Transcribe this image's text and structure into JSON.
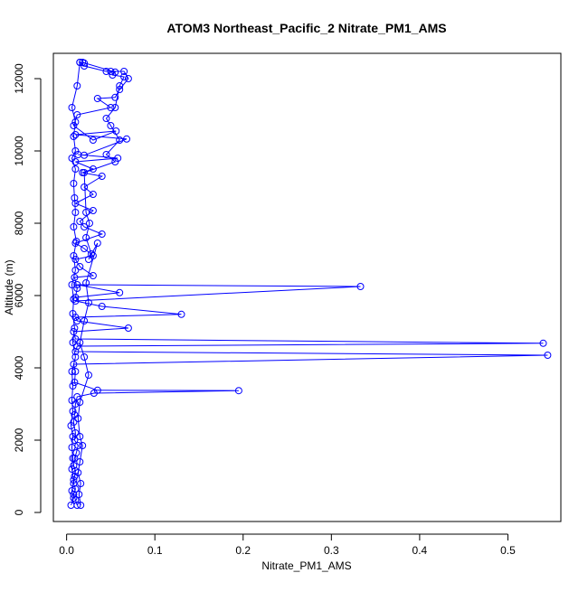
{
  "chart_data": {
    "type": "line",
    "title": "ATOM3 Northeast_Pacific_2 Nitrate_PM1_AMS",
    "xlabel": "Nitrate_PM1_AMS",
    "ylabel": "Altitude (m)",
    "xlim": [
      -0.015,
      0.56
    ],
    "ylim": [
      -250,
      12700
    ],
    "xticks": [
      0.0,
      0.1,
      0.2,
      0.3,
      0.4,
      0.5
    ],
    "xtick_labels": [
      "0.0",
      "0.1",
      "0.2",
      "0.3",
      "0.4",
      "0.5"
    ],
    "yticks": [
      0,
      2000,
      4000,
      6000,
      8000,
      10000,
      12000
    ],
    "ytick_labels": [
      "0",
      "2000",
      "4000",
      "6000",
      "8000",
      "10000",
      "12000"
    ],
    "grid": false,
    "legend": "none",
    "marker": "open-circle",
    "color": "#0000ff",
    "series": [
      {
        "values": [
          [
            0.012,
            200
          ],
          [
            0.01,
            350
          ],
          [
            0.008,
            500
          ],
          [
            0.01,
            650
          ],
          [
            0.008,
            800
          ],
          [
            0.009,
            1000
          ],
          [
            0.01,
            1150
          ],
          [
            0.008,
            1300
          ],
          [
            0.009,
            1500
          ],
          [
            0.011,
            1650
          ],
          [
            0.013,
            1850
          ],
          [
            0.009,
            2000
          ],
          [
            0.01,
            2200
          ],
          [
            0.008,
            2500
          ],
          [
            0.009,
            2700
          ],
          [
            0.01,
            3000
          ],
          [
            0.012,
            3200
          ],
          [
            0.031,
            3300
          ],
          [
            0.195,
            3370
          ],
          [
            0.035,
            3380
          ],
          [
            0.009,
            3600
          ],
          [
            0.01,
            3900
          ],
          [
            0.008,
            4100
          ],
          [
            0.545,
            4350
          ],
          [
            0.01,
            4450
          ],
          [
            0.012,
            4600
          ],
          [
            0.54,
            4680
          ],
          [
            0.01,
            4800
          ],
          [
            0.008,
            5000
          ],
          [
            0.07,
            5100
          ],
          [
            0.012,
            5300
          ],
          [
            0.01,
            5400
          ],
          [
            0.13,
            5480
          ],
          [
            0.04,
            5700
          ],
          [
            0.01,
            5850
          ],
          [
            0.333,
            6250
          ],
          [
            0.012,
            6300
          ],
          [
            0.06,
            6080
          ],
          [
            0.01,
            5950
          ],
          [
            0.012,
            6200
          ],
          [
            0.009,
            6500
          ],
          [
            0.03,
            6550
          ],
          [
            0.015,
            6800
          ],
          [
            0.01,
            7000
          ],
          [
            0.03,
            7100
          ],
          [
            0.02,
            7300
          ],
          [
            0.01,
            7450
          ],
          [
            0.04,
            7700
          ],
          [
            0.02,
            7900
          ],
          [
            0.015,
            8050
          ],
          [
            0.03,
            8350
          ],
          [
            0.01,
            8550
          ],
          [
            0.03,
            8800
          ],
          [
            0.02,
            9000
          ],
          [
            0.04,
            9300
          ],
          [
            0.018,
            9400
          ],
          [
            0.03,
            9500
          ],
          [
            0.01,
            9700
          ],
          [
            0.058,
            9800
          ],
          [
            0.013,
            9900
          ],
          [
            0.02,
            9880
          ],
          [
            0.068,
            10330
          ],
          [
            0.01,
            10450
          ],
          [
            0.056,
            10550
          ],
          [
            0.03,
            10300
          ],
          [
            0.008,
            10700
          ],
          [
            0.012,
            11000
          ],
          [
            0.05,
            11200
          ],
          [
            0.035,
            11450
          ],
          [
            0.055,
            11480
          ],
          [
            0.06,
            11700
          ],
          [
            0.07,
            12000
          ],
          [
            0.065,
            12200
          ],
          [
            0.05,
            12200
          ],
          [
            0.045,
            12200
          ],
          [
            0.02,
            12350
          ],
          [
            0.015,
            12450
          ],
          [
            0.02,
            12430
          ]
        ]
      },
      {
        "values": [
          [
            0.005,
            200
          ],
          [
            0.008,
            400
          ],
          [
            0.006,
            600
          ],
          [
            0.008,
            900
          ],
          [
            0.006,
            1200
          ],
          [
            0.007,
            1500
          ],
          [
            0.006,
            1800
          ],
          [
            0.007,
            2100
          ],
          [
            0.005,
            2400
          ],
          [
            0.007,
            2800
          ],
          [
            0.006,
            3100
          ],
          [
            0.007,
            3500
          ],
          [
            0.006,
            3900
          ],
          [
            0.01,
            4300
          ],
          [
            0.007,
            4700
          ],
          [
            0.009,
            5100
          ],
          [
            0.007,
            5500
          ],
          [
            0.008,
            5900
          ],
          [
            0.006,
            6300
          ],
          [
            0.01,
            6700
          ],
          [
            0.008,
            7100
          ],
          [
            0.011,
            7500
          ],
          [
            0.008,
            7900
          ],
          [
            0.01,
            8300
          ],
          [
            0.009,
            8700
          ],
          [
            0.008,
            9100
          ],
          [
            0.01,
            9500
          ],
          [
            0.006,
            9800
          ],
          [
            0.01,
            10000
          ],
          [
            0.008,
            10400
          ],
          [
            0.01,
            10800
          ],
          [
            0.006,
            11200
          ],
          [
            0.012,
            11800
          ],
          [
            0.015,
            12450
          ]
        ]
      },
      {
        "values": [
          [
            0.016,
            200
          ],
          [
            0.014,
            500
          ],
          [
            0.016,
            800
          ],
          [
            0.013,
            1100
          ],
          [
            0.015,
            1400
          ],
          [
            0.018,
            1850
          ],
          [
            0.015,
            2100
          ],
          [
            0.013,
            2600
          ],
          [
            0.015,
            3050
          ],
          [
            0.025,
            3800
          ],
          [
            0.02,
            4300
          ],
          [
            0.015,
            4700
          ],
          [
            0.02,
            5300
          ],
          [
            0.025,
            5800
          ],
          [
            0.022,
            6350
          ],
          [
            0.035,
            7450
          ],
          [
            0.025,
            7000
          ],
          [
            0.028,
            7150
          ],
          [
            0.022,
            7600
          ],
          [
            0.026,
            8000
          ],
          [
            0.022,
            8300
          ],
          [
            0.02,
            9400
          ],
          [
            0.055,
            9700
          ],
          [
            0.045,
            9900
          ],
          [
            0.06,
            10300
          ],
          [
            0.05,
            10700
          ],
          [
            0.045,
            10900
          ],
          [
            0.055,
            11200
          ],
          [
            0.06,
            11800
          ],
          [
            0.065,
            12050
          ],
          [
            0.052,
            12100
          ],
          [
            0.055,
            12180
          ],
          [
            0.018,
            12450
          ]
        ]
      }
    ]
  }
}
